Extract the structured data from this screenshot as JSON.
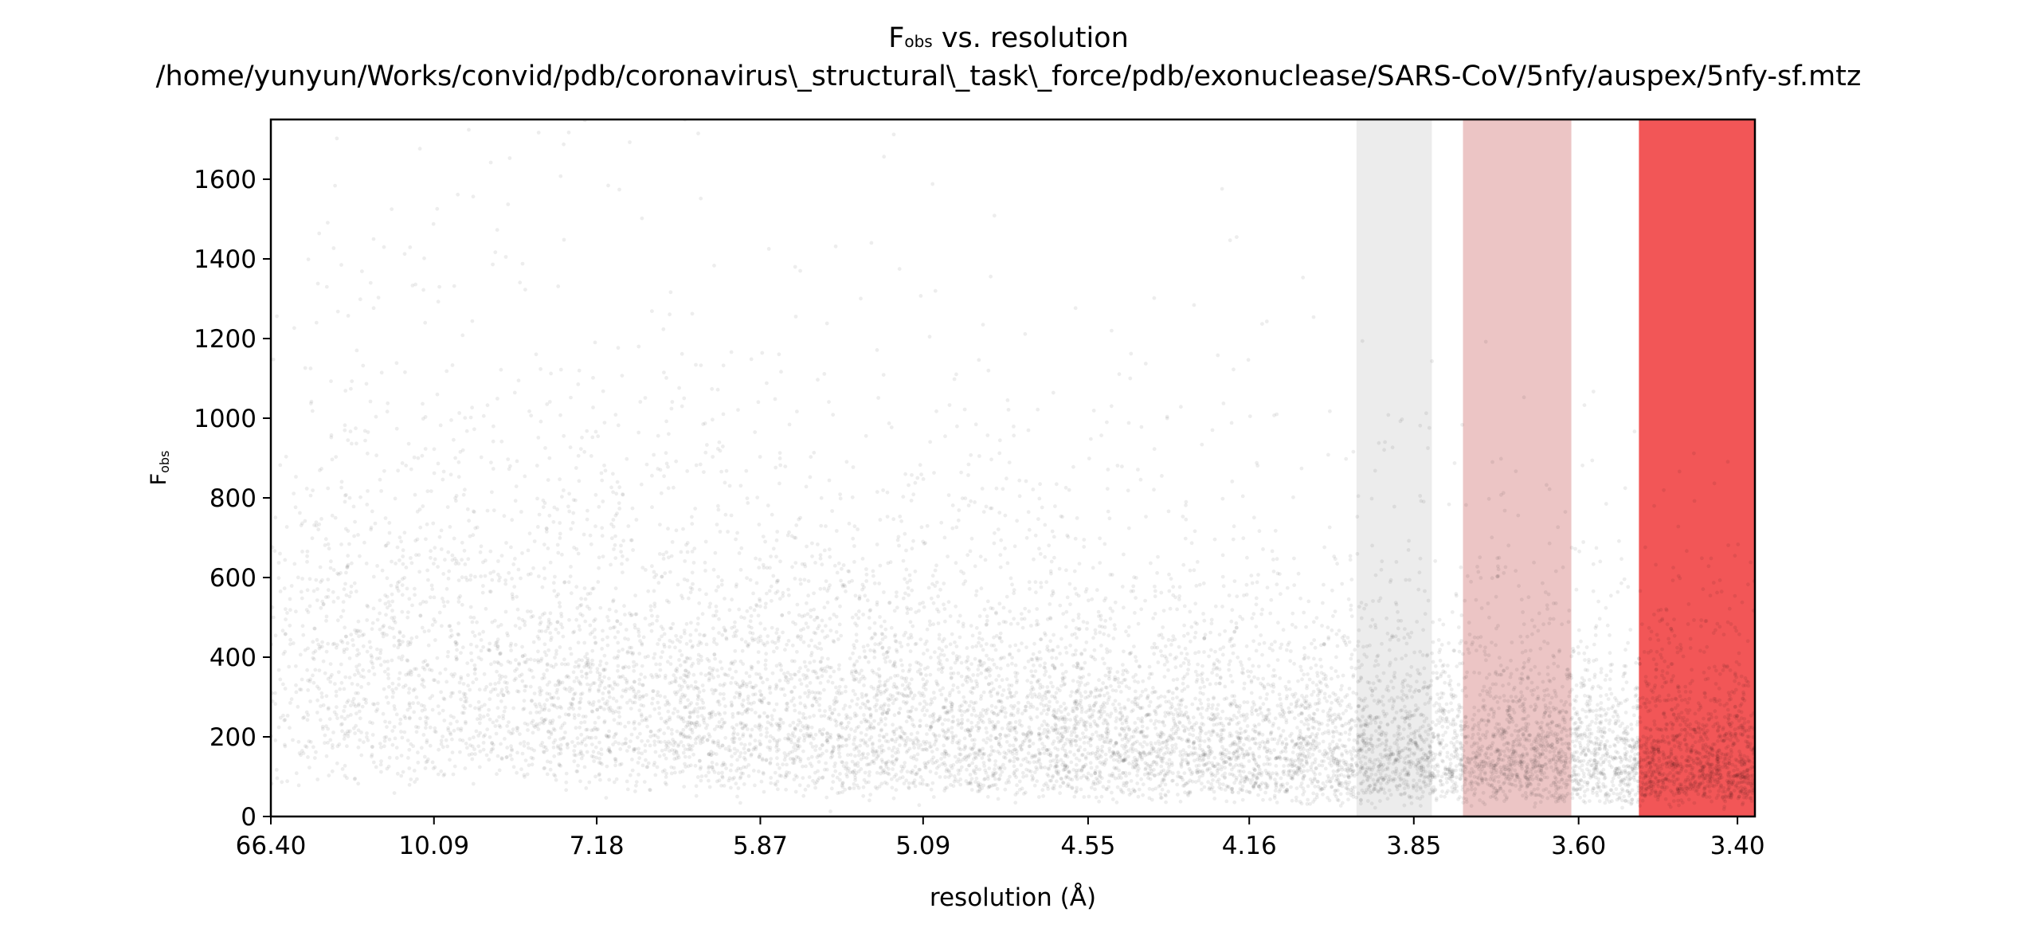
{
  "title": {
    "main_symbol": "F",
    "main_subscript": "obs",
    "main_rest": " vs. resolution",
    "path": "/home/yunyun/Works/convid/pdb/coronavirus\\_structural\\_task\\_force/pdb/exonuclease/SARS-CoV/5nfy/auspex/5nfy-sf.mtz"
  },
  "chart_data": {
    "type": "scatter",
    "title": "Fobs vs. resolution",
    "xlabel": "resolution (Å)",
    "ylabel_symbol": "F",
    "ylabel_subscript": "obs",
    "x_scale": "1/d^2 (reciprocal-squared resolution)",
    "x_ticks": [
      "66.40",
      "10.09",
      "7.18",
      "5.87",
      "5.09",
      "4.55",
      "4.16",
      "3.85",
      "3.60",
      "3.40"
    ],
    "xlim_resolution": [
      66.4,
      3.38
    ],
    "ylim": [
      0,
      1750
    ],
    "y_ticks": [
      0,
      200,
      400,
      600,
      800,
      1000,
      1200,
      1400,
      1600
    ],
    "grid": false,
    "legend": "none",
    "point_color": "#000000",
    "density_profile": [
      {
        "resolution": 10.09,
        "median_Fobs": 420,
        "spread": 380
      },
      {
        "resolution": 7.18,
        "median_Fobs": 360,
        "spread": 330
      },
      {
        "resolution": 5.87,
        "median_Fobs": 300,
        "spread": 260
      },
      {
        "resolution": 5.09,
        "median_Fobs": 260,
        "spread": 220
      },
      {
        "resolution": 4.55,
        "median_Fobs": 230,
        "spread": 190
      },
      {
        "resolution": 4.16,
        "median_Fobs": 200,
        "spread": 160
      },
      {
        "resolution": 3.85,
        "median_Fobs": 185,
        "spread": 140
      },
      {
        "resolution": 3.6,
        "median_Fobs": 170,
        "spread": 120
      },
      {
        "resolution": 3.4,
        "median_Fobs": 150,
        "spread": 90
      }
    ],
    "ice_ring_bands": [
      {
        "resolution_low": 3.95,
        "resolution_high": 3.82,
        "color": "#e0e0e0",
        "alpha": 0.6
      },
      {
        "resolution_low": 3.77,
        "resolution_high": 3.61,
        "color": "#d98c8c",
        "alpha": 0.5
      },
      {
        "resolution_low": 3.52,
        "resolution_high": 3.38,
        "color": "#f0383a",
        "alpha": 0.85
      }
    ]
  }
}
